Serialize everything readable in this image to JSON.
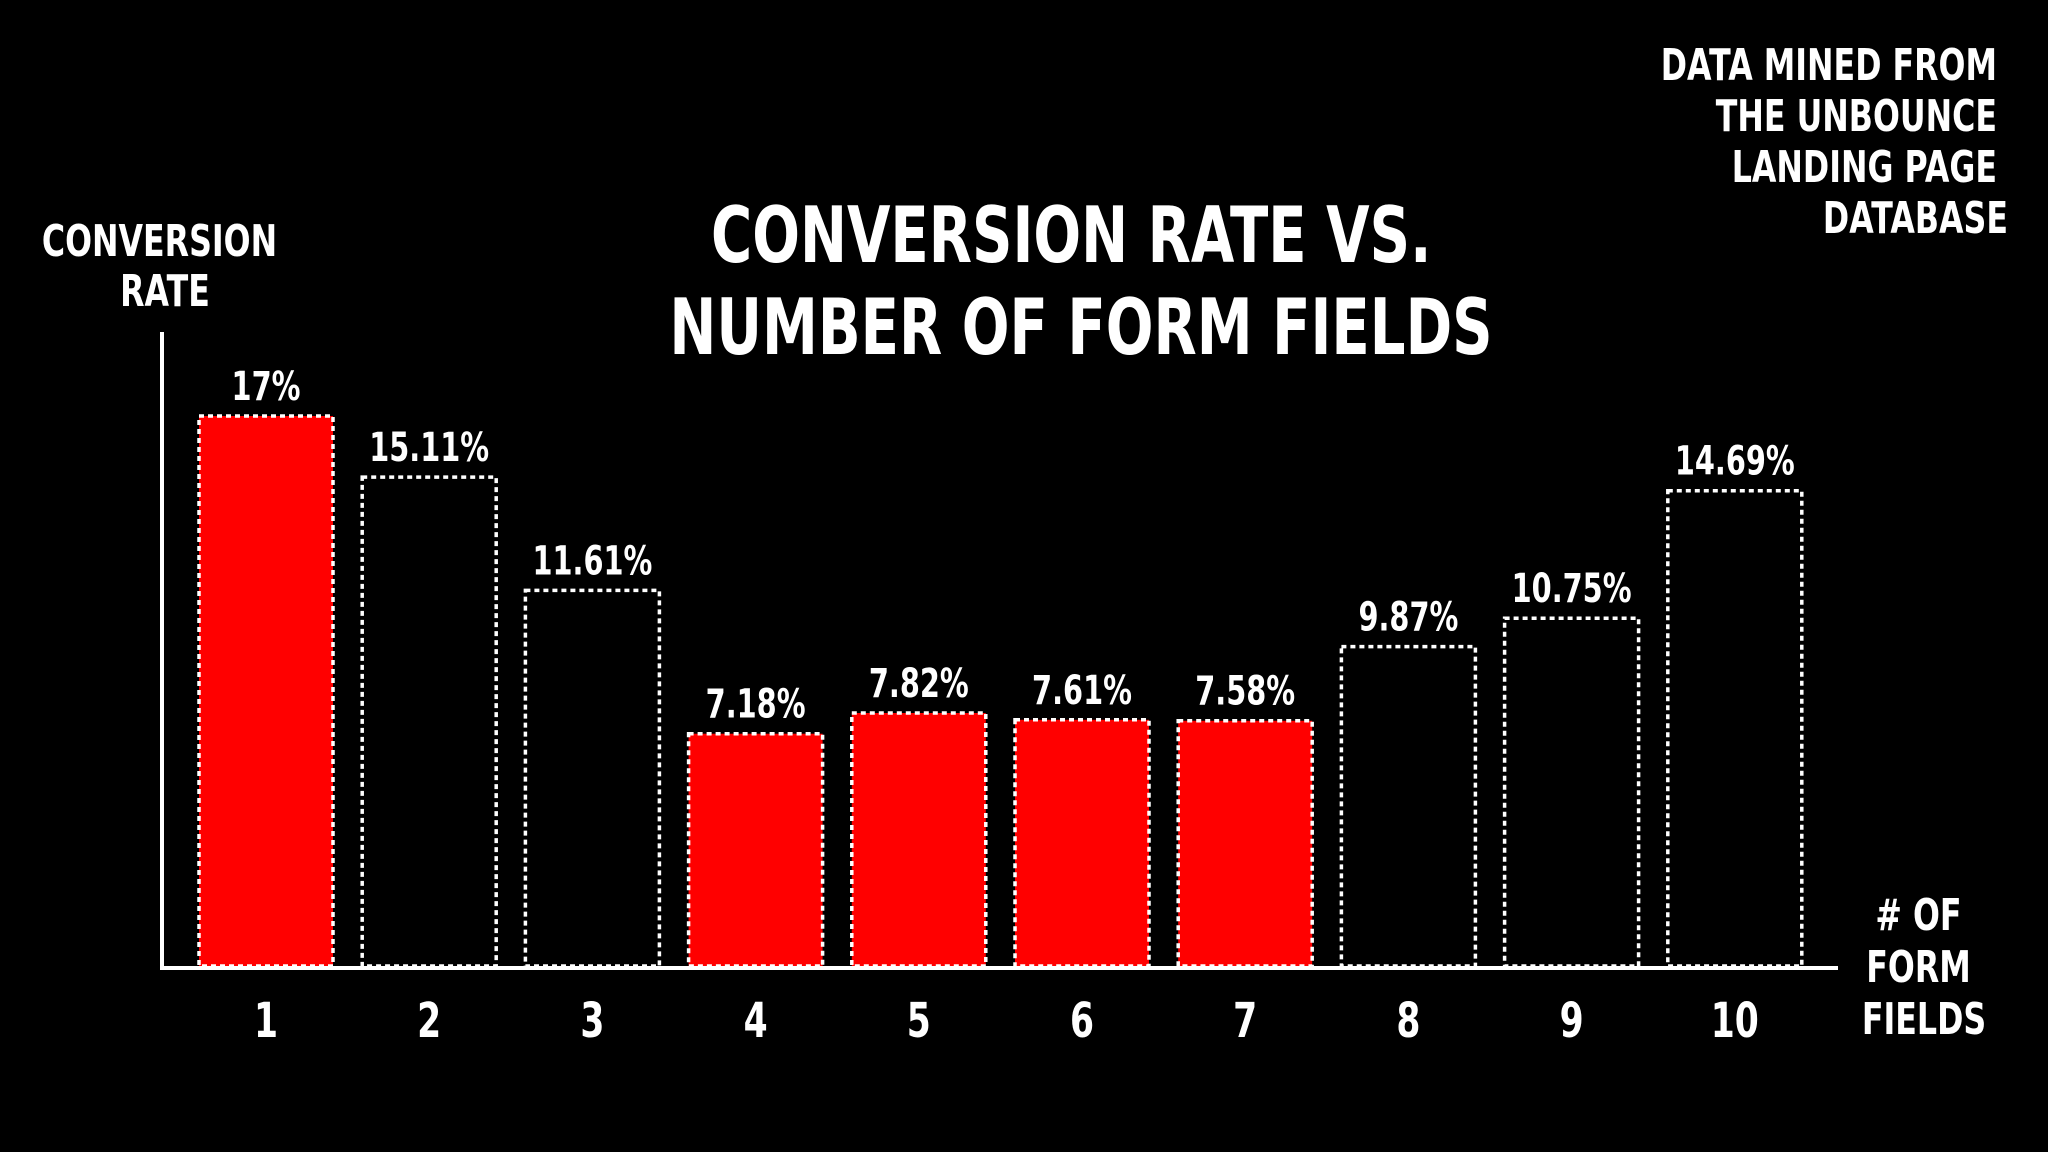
{
  "chart_data": {
    "type": "bar",
    "title": "CONVERSION RATE VS. NUMBER OF FORM FIELDS",
    "title_lines": [
      "CONVERSION RATE VS.",
      "NUMBER OF FORM FIELDS"
    ],
    "ylabel_lines": [
      "CONVERSION",
      "RATE"
    ],
    "xlabel_lines": [
      "# OF",
      "FORM",
      "FIELDS"
    ],
    "source_lines": [
      "DATA MINED FROM",
      "THE UNBOUNCE",
      "LANDING PAGE",
      "DATABASE"
    ],
    "categories": [
      "1",
      "2",
      "3",
      "4",
      "5",
      "6",
      "7",
      "8",
      "9",
      "10"
    ],
    "values": [
      17,
      15.11,
      11.61,
      7.18,
      7.82,
      7.61,
      7.58,
      9.87,
      10.75,
      14.69
    ],
    "value_labels": [
      "17%",
      "15.11%",
      "11.61%",
      "7.18%",
      "7.82%",
      "7.61%",
      "7.58%",
      "9.87%",
      "10.75%",
      "14.69%"
    ],
    "highlighted": [
      true,
      false,
      false,
      true,
      true,
      true,
      true,
      false,
      false,
      false
    ],
    "ylim": [
      0,
      17
    ],
    "grid": false,
    "legend": "none",
    "colors": {
      "background": "#000000",
      "highlight_fill": "#ff0000",
      "outline": "#ffffff",
      "text": "#ffffff"
    }
  }
}
